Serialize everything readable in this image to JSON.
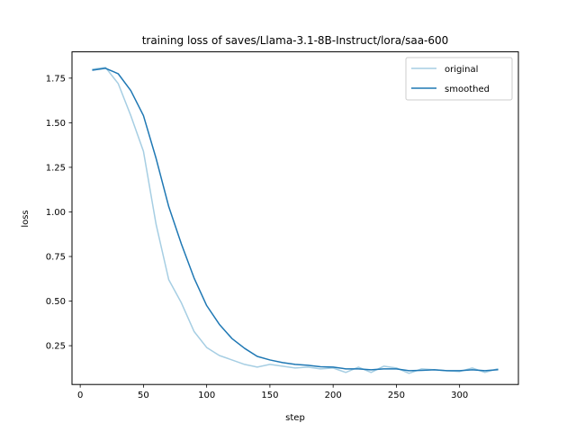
{
  "chart_data": {
    "type": "line",
    "title": "training loss of saves/Llama-3.1-8B-Instruct/lora/saa-600",
    "xlabel": "step",
    "ylabel": "loss",
    "xlim": [
      -6.5,
      346.5
    ],
    "ylim": [
      0.0325,
      1.8975
    ],
    "x_ticks": [
      0,
      50,
      100,
      150,
      200,
      250,
      300
    ],
    "y_ticks": [
      0.25,
      0.5,
      0.75,
      1.0,
      1.25,
      1.5,
      1.75
    ],
    "y_tick_labels": [
      "0.25",
      "0.50",
      "0.75",
      "1.00",
      "1.25",
      "1.50",
      "1.75"
    ],
    "grid": false,
    "legend_position": "upper right",
    "series": [
      {
        "name": "original",
        "color": "#a6cee3",
        "x": [
          10,
          20,
          30,
          40,
          50,
          60,
          70,
          80,
          90,
          100,
          110,
          120,
          130,
          140,
          150,
          160,
          170,
          180,
          190,
          200,
          210,
          220,
          230,
          240,
          250,
          260,
          270,
          280,
          290,
          300,
          310,
          320,
          330
        ],
        "values": [
          1.8,
          1.81,
          1.72,
          1.54,
          1.34,
          0.93,
          0.62,
          0.49,
          0.33,
          0.24,
          0.195,
          0.17,
          0.145,
          0.13,
          0.145,
          0.135,
          0.125,
          0.13,
          0.12,
          0.125,
          0.1,
          0.13,
          0.1,
          0.135,
          0.125,
          0.095,
          0.12,
          0.115,
          0.11,
          0.105,
          0.125,
          0.1,
          0.12
        ]
      },
      {
        "name": "smoothed",
        "color": "#1f78b4",
        "x": [
          10,
          20,
          30,
          40,
          50,
          60,
          70,
          80,
          90,
          100,
          110,
          120,
          130,
          140,
          150,
          160,
          170,
          180,
          190,
          200,
          210,
          220,
          230,
          240,
          250,
          260,
          270,
          280,
          290,
          300,
          310,
          320,
          330
        ],
        "values": [
          1.795,
          1.805,
          1.775,
          1.68,
          1.54,
          1.3,
          1.03,
          0.82,
          0.63,
          0.475,
          0.37,
          0.29,
          0.235,
          0.19,
          0.17,
          0.155,
          0.145,
          0.14,
          0.132,
          0.13,
          0.12,
          0.12,
          0.115,
          0.12,
          0.12,
          0.11,
          0.112,
          0.115,
          0.11,
          0.11,
          0.115,
          0.11,
          0.115
        ]
      }
    ]
  }
}
